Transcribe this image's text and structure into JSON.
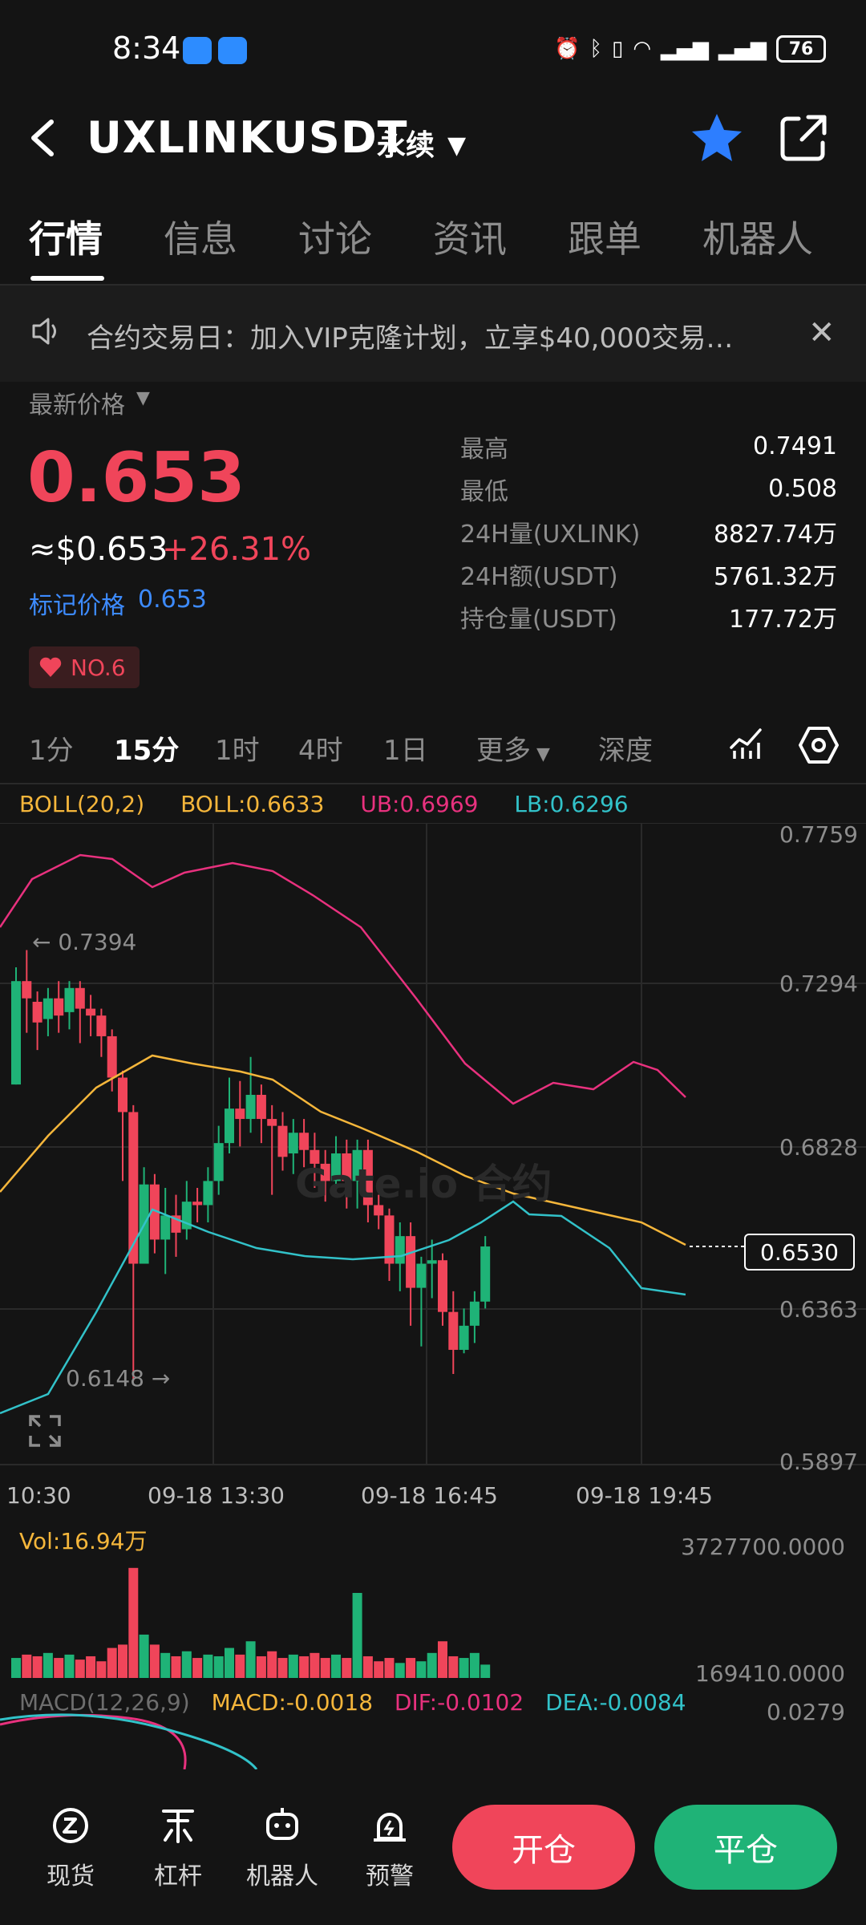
{
  "status_bar": {
    "time": "8:34",
    "battery": "76"
  },
  "header": {
    "symbol": "UXLINKUSDT",
    "contract_type": "永续",
    "caret_icon": "caret-down-icon"
  },
  "tabs": [
    {
      "label": "行情",
      "active": true
    },
    {
      "label": "信息"
    },
    {
      "label": "讨论"
    },
    {
      "label": "资讯"
    },
    {
      "label": "跟单"
    },
    {
      "label": "机器人"
    }
  ],
  "notice": {
    "text": "合约交易日：加入VIP克隆计划，立享$40,000交易…"
  },
  "price": {
    "latest_label": "最新价格",
    "last": "0.653",
    "usd": "≈$0.653",
    "change": "+26.31%",
    "mark_label": "标记价格",
    "mark_value": "0.653",
    "rank": "NO.6"
  },
  "stats": [
    {
      "label": "最高",
      "value": "0.7491"
    },
    {
      "label": "最低",
      "value": "0.508"
    },
    {
      "label": "24H量(UXLINK)",
      "value": "8827.74万"
    },
    {
      "label": "24H额(USDT)",
      "value": "5761.32万"
    },
    {
      "label": "持仓量(USDT)",
      "value": "177.72万"
    }
  ],
  "intervals": [
    {
      "label": "1分"
    },
    {
      "label": "15分",
      "active": true
    },
    {
      "label": "1时"
    },
    {
      "label": "4时"
    },
    {
      "label": "1日"
    },
    {
      "label": "更多"
    },
    {
      "label": "深度"
    }
  ],
  "indicators": {
    "boll_name": "BOLL(20,2)",
    "boll": "BOLL:0.6633",
    "ub": "UB:0.6969",
    "lb": "LB:0.6296",
    "vol": "Vol:16.94万",
    "macd_name": "MACD(12,26,9)",
    "macd": "MACD:-0.0018",
    "dif": "DIF:-0.0102",
    "dea": "DEA:-0.0084"
  },
  "chart": {
    "price_axis": [
      "0.7759",
      "0.7294",
      "0.6828",
      "0.6363",
      "0.5897"
    ],
    "time_axis": [
      "10:30",
      "09-18 13:30",
      "09-18 16:45",
      "09-18 19:45"
    ],
    "high_marker": "← 0.7394",
    "low_marker": "0.6148 →",
    "current_price": "0.6530",
    "watermark": "Gate.io 合约",
    "vol_axis": [
      "3727700.0000",
      "169410.0000"
    ],
    "macd_axis": "0.0279",
    "colors": {
      "up": "#1fb377",
      "down": "#f0455a",
      "boll_mid": "#f5b63b",
      "boll_upper": "#e8317e",
      "boll_lower": "#32c2c9"
    }
  },
  "bottom_nav": [
    {
      "label": "现货",
      "icon": "spot-icon"
    },
    {
      "label": "杠杆",
      "icon": "leverage-icon"
    },
    {
      "label": "机器人",
      "icon": "robot-icon"
    },
    {
      "label": "预警",
      "icon": "alert-icon"
    }
  ],
  "actions": {
    "open": "开仓",
    "close": "平仓"
  }
}
